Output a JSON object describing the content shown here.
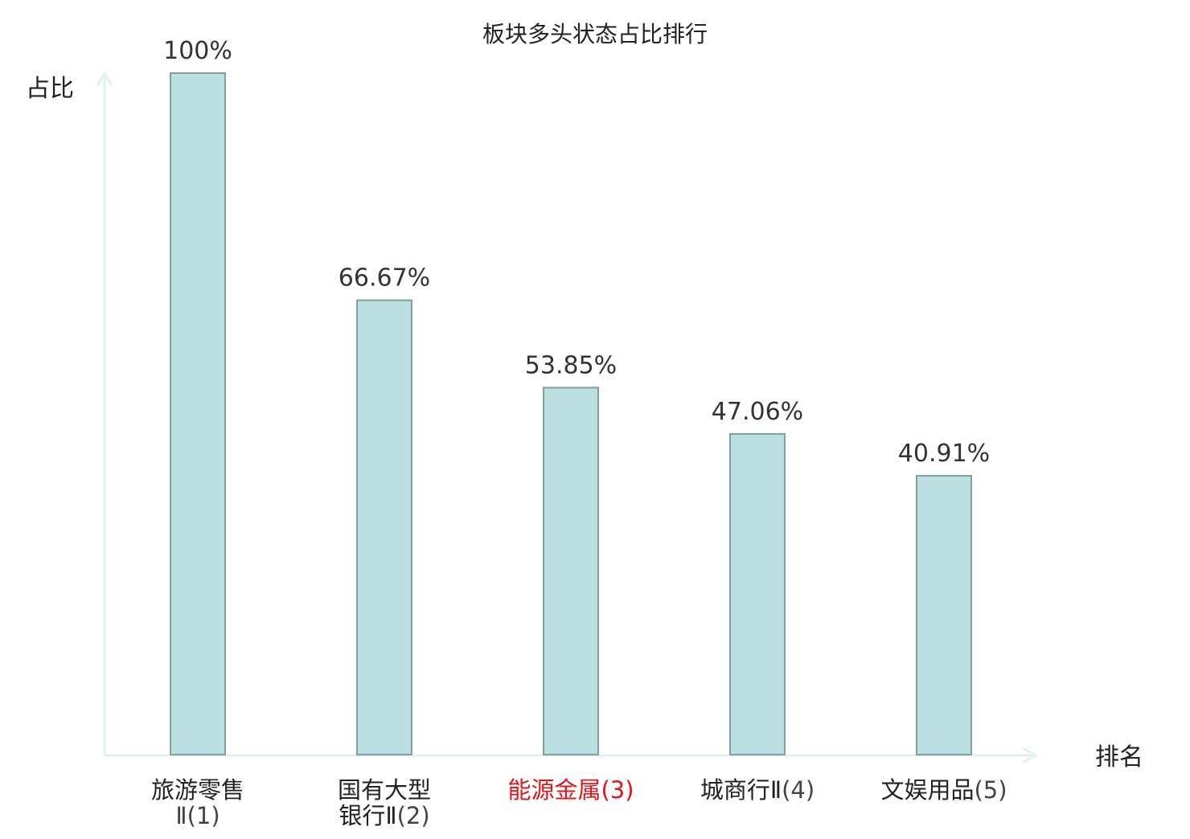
{
  "chart_data": {
    "type": "bar",
    "title": "板块多头状态占比排行",
    "xlabel": "排名",
    "ylabel": "占比",
    "categories": [
      {
        "name_lines": [
          "旅游零售"
        ],
        "suffix_lines": [
          "Ⅱ(1)"
        ],
        "highlight": false
      },
      {
        "name_lines": [
          "国有大型",
          "银行Ⅱ"
        ],
        "suffix_lines": [
          "(2)"
        ],
        "highlight": false
      },
      {
        "name_lines": [
          "能源金属"
        ],
        "suffix_lines": [
          "(3)"
        ],
        "highlight": true
      },
      {
        "name_lines": [
          "城商行Ⅱ"
        ],
        "suffix_lines": [
          "(4)"
        ],
        "highlight": false
      },
      {
        "name_lines": [
          "文娱用品"
        ],
        "suffix_lines": [
          "(5)"
        ],
        "highlight": false
      }
    ],
    "values": [
      100,
      66.67,
      53.85,
      47.06,
      40.91
    ],
    "value_labels": [
      "100%",
      "66.67%",
      "53.85%",
      "47.06%",
      "40.91%"
    ],
    "ylim": [
      0,
      100
    ],
    "grid": false,
    "colors": {
      "bar_fill": "#bce0e2",
      "bar_stroke": "#7f9fa1",
      "axis": "#dff2ef",
      "text": "#222222",
      "value_text": "#333333",
      "suffix_text": "#444444",
      "highlight": "#e0161b"
    }
  }
}
